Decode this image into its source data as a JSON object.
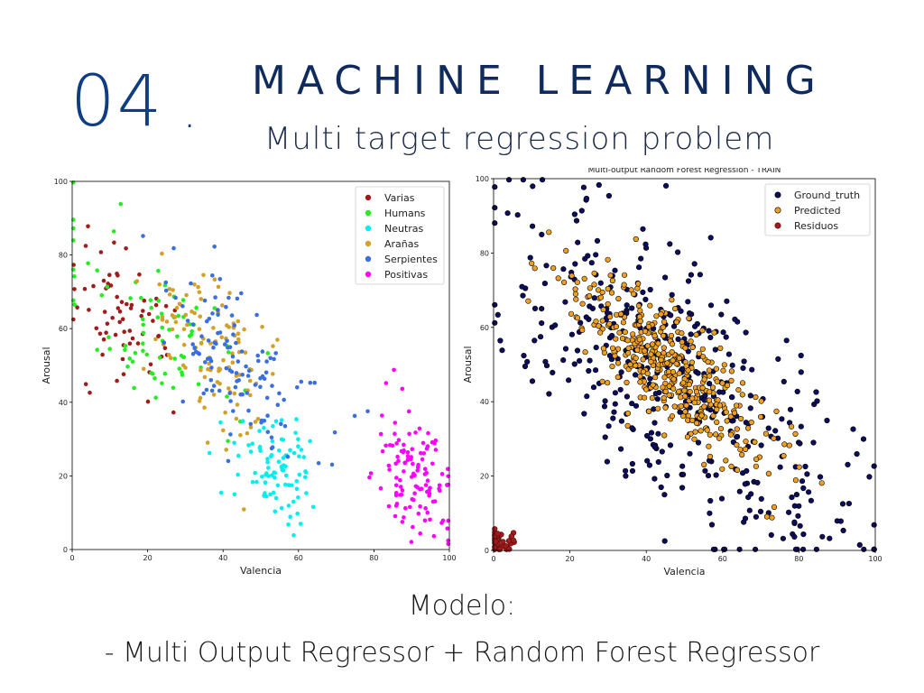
{
  "slide": {
    "number": "04",
    "dot": ".",
    "title": "MACHINE LEARNING",
    "subtitle": "Multi target regression problem",
    "model_label": "Modelo:",
    "model_desc": "- Multi Output Regressor + Random Forest Regressor"
  },
  "chart_data": [
    {
      "type": "scatter",
      "title": "",
      "xlabel": "Valencia",
      "ylabel": "Arousal",
      "xlim": [
        0,
        100
      ],
      "ylim": [
        0,
        100
      ],
      "xticks": [
        0,
        20,
        40,
        60,
        80,
        100
      ],
      "yticks": [
        0,
        20,
        40,
        60,
        80,
        100
      ],
      "grid": false,
      "legend_position": "top-right",
      "series": [
        {
          "name": "Varias",
          "color": "#a01c1c",
          "generator": {
            "cx": 15,
            "cy": 62,
            "sx": 8,
            "sy": 10,
            "n": 70,
            "slope": -0.6
          }
        },
        {
          "name": "Humans",
          "color": "#22ee22",
          "generator": {
            "cx": 25,
            "cy": 60,
            "sx": 14,
            "sy": 12,
            "n": 80,
            "slope": -0.7
          }
        },
        {
          "name": "Neutras",
          "color": "#00eeee",
          "generator": {
            "cx": 53,
            "cy": 22,
            "sx": 6,
            "sy": 7,
            "n": 90,
            "slope": -0.2
          }
        },
        {
          "name": "Arañas",
          "color": "#d4a028",
          "generator": {
            "cx": 37,
            "cy": 55,
            "sx": 9,
            "sy": 10,
            "n": 110,
            "slope": -0.7
          }
        },
        {
          "name": "Serpientes",
          "color": "#3b6fe0",
          "generator": {
            "cx": 42,
            "cy": 52,
            "sx": 10,
            "sy": 10,
            "n": 120,
            "slope": -0.7
          }
        },
        {
          "name": "Positivas",
          "color": "#ff00ff",
          "generator": {
            "cx": 91,
            "cy": 20,
            "sx": 5,
            "sy": 9,
            "n": 120,
            "slope": -0.8
          }
        }
      ]
    },
    {
      "type": "scatter",
      "title": "Multi-output Random Forest Regression - TRAIN",
      "xlabel": "Valencia",
      "ylabel": "Arousal",
      "xlim": [
        0,
        100
      ],
      "ylim": [
        0,
        100
      ],
      "xticks": [
        0,
        20,
        40,
        60,
        80,
        100
      ],
      "yticks": [
        0,
        20,
        40,
        60,
        80,
        100
      ],
      "grid": false,
      "legend_position": "top-right",
      "series": [
        {
          "name": "Ground_truth",
          "color": "#0d0d5e",
          "edge": "#000000",
          "generator": {
            "cx": 48,
            "cy": 45,
            "sx": 22,
            "sy": 18,
            "n": 420,
            "slope": -0.75
          }
        },
        {
          "name": "Predicted",
          "color": "#f0a020",
          "edge": "#000000",
          "generator": {
            "cx": 48,
            "cy": 47,
            "sx": 13,
            "sy": 8,
            "n": 420,
            "slope": -0.75
          }
        },
        {
          "name": "Residuos",
          "color": "#a01c1c",
          "edge": "#5a0a0a",
          "generator": {
            "cx": 2,
            "cy": 2,
            "sx": 2.5,
            "sy": 2,
            "n": 40,
            "slope": 0
          }
        }
      ]
    }
  ]
}
